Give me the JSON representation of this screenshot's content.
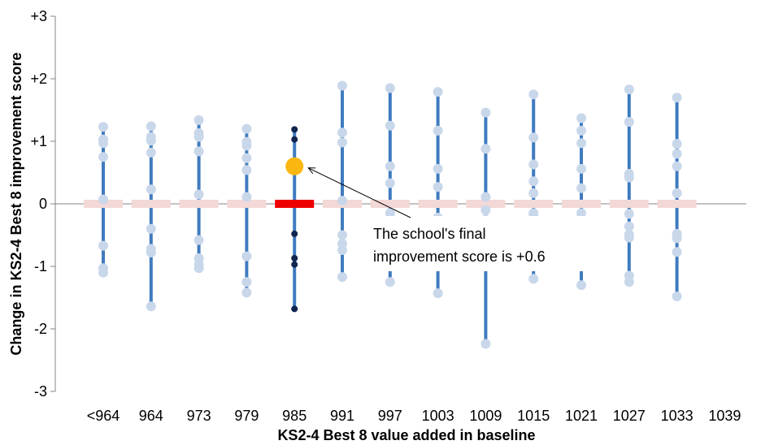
{
  "chart_data": {
    "type": "scatter",
    "xlabel": "KS2-4 Best 8 value added in baseline",
    "ylabel": "Change in KS2-4 Best 8 improvement score",
    "categories": [
      "<964",
      "964",
      "973",
      "979",
      "985",
      "991",
      "997",
      "1003",
      "1009",
      "1015",
      "1021",
      "1027",
      "1033",
      "1039"
    ],
    "ylim": [
      -3,
      3
    ],
    "yticks": [
      "-3",
      "-2",
      "-1",
      "0",
      "+1",
      "+2",
      "+3"
    ],
    "highlight_category": "985",
    "colors": {
      "range_line": "#3f7bbf",
      "school_point": "#c9d7ea",
      "highlight_point": "#10264f",
      "baseline_bar": "#f2d8d6",
      "highlight_bar": "#ee0000",
      "final_score_marker": "#fbb710"
    },
    "groups": [
      {
        "category": "<964",
        "points": [
          1.23,
          1.03,
          0.97,
          0.75,
          0.07,
          -0.67,
          -1.03,
          -1.1
        ]
      },
      {
        "category": "964",
        "points": [
          1.24,
          1.07,
          1.01,
          0.82,
          0.23,
          -0.4,
          -0.72,
          -0.78,
          -1.64
        ]
      },
      {
        "category": "973",
        "points": [
          1.34,
          1.13,
          1.07,
          0.84,
          0.15,
          -0.58,
          -0.87,
          -0.97,
          -1.03
        ]
      },
      {
        "category": "979",
        "points": [
          1.2,
          0.99,
          0.93,
          0.73,
          0.54,
          0.11,
          -0.84,
          -1.25,
          -1.42
        ]
      },
      {
        "category": "985",
        "points": [
          1.19,
          1.03,
          -0.48,
          -0.87,
          -0.97,
          -1.68
        ]
      },
      {
        "category": "991",
        "points": [
          1.89,
          1.14,
          0.98,
          0.05,
          -0.5,
          -0.64,
          -0.74,
          -1.17
        ]
      },
      {
        "category": "997",
        "points": [
          1.85,
          1.25,
          0.6,
          0.33,
          -0.15,
          -0.23,
          -1.25
        ]
      },
      {
        "category": "1003",
        "points": [
          1.79,
          1.17,
          0.56,
          0.27,
          -0.22,
          -1.43
        ]
      },
      {
        "category": "1009",
        "points": [
          1.46,
          0.88,
          0.11,
          -0.1,
          -0.25,
          -2.24
        ]
      },
      {
        "category": "1015",
        "points": [
          1.75,
          1.06,
          0.63,
          0.36,
          0.17,
          -0.15,
          -0.2,
          -1.2
        ]
      },
      {
        "category": "1021",
        "points": [
          1.37,
          1.17,
          0.97,
          0.56,
          0.25,
          -0.15,
          -1.3
        ]
      },
      {
        "category": "1027",
        "points": [
          1.83,
          1.31,
          0.48,
          0.42,
          -0.16,
          -0.36,
          -0.49,
          -0.54,
          -1.15,
          -1.25
        ]
      },
      {
        "category": "1033",
        "points": [
          1.7,
          0.96,
          0.8,
          0.6,
          0.17,
          -0.48,
          -0.55,
          -0.77,
          -1.48
        ]
      }
    ],
    "final_score": {
      "category": "985",
      "value": 0.6
    },
    "annotation": {
      "line1": "The school's final",
      "line2": "improvement score is +0.6"
    }
  }
}
